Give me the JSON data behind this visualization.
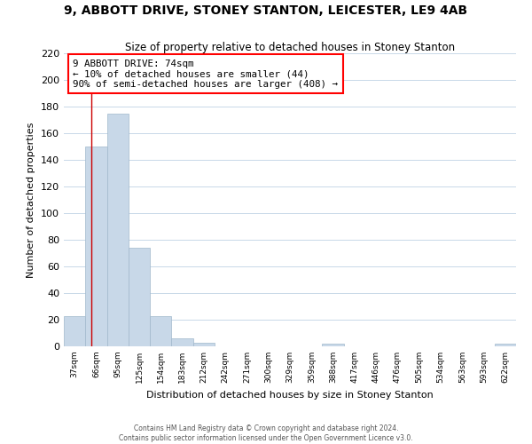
{
  "title": "9, ABBOTT DRIVE, STONEY STANTON, LEICESTER, LE9 4AB",
  "subtitle": "Size of property relative to detached houses in Stoney Stanton",
  "xlabel": "Distribution of detached houses by size in Stoney Stanton",
  "ylabel": "Number of detached properties",
  "bar_labels": [
    "37sqm",
    "66sqm",
    "95sqm",
    "125sqm",
    "154sqm",
    "183sqm",
    "212sqm",
    "242sqm",
    "271sqm",
    "300sqm",
    "329sqm",
    "359sqm",
    "388sqm",
    "417sqm",
    "446sqm",
    "476sqm",
    "505sqm",
    "534sqm",
    "563sqm",
    "593sqm",
    "622sqm"
  ],
  "bar_values": [
    23,
    150,
    175,
    74,
    23,
    6,
    3,
    0,
    0,
    0,
    0,
    0,
    2,
    0,
    0,
    0,
    0,
    0,
    0,
    0,
    2
  ],
  "bar_color": "#c8d8e8",
  "bar_edge_color": "#a0b8cc",
  "annotation_line1": "9 ABBOTT DRIVE: 74sqm",
  "annotation_line2": "← 10% of detached houses are smaller (44)",
  "annotation_line3": "90% of semi-detached houses are larger (408) →",
  "annotation_box_color": "white",
  "annotation_box_edge_color": "red",
  "ylim": [
    0,
    220
  ],
  "yticks": [
    0,
    20,
    40,
    60,
    80,
    100,
    120,
    140,
    160,
    180,
    200,
    220
  ],
  "grid_color": "#c8d8e8",
  "background_color": "white",
  "footer_line1": "Contains HM Land Registry data © Crown copyright and database right 2024.",
  "footer_line2": "Contains public sector information licensed under the Open Government Licence v3.0."
}
